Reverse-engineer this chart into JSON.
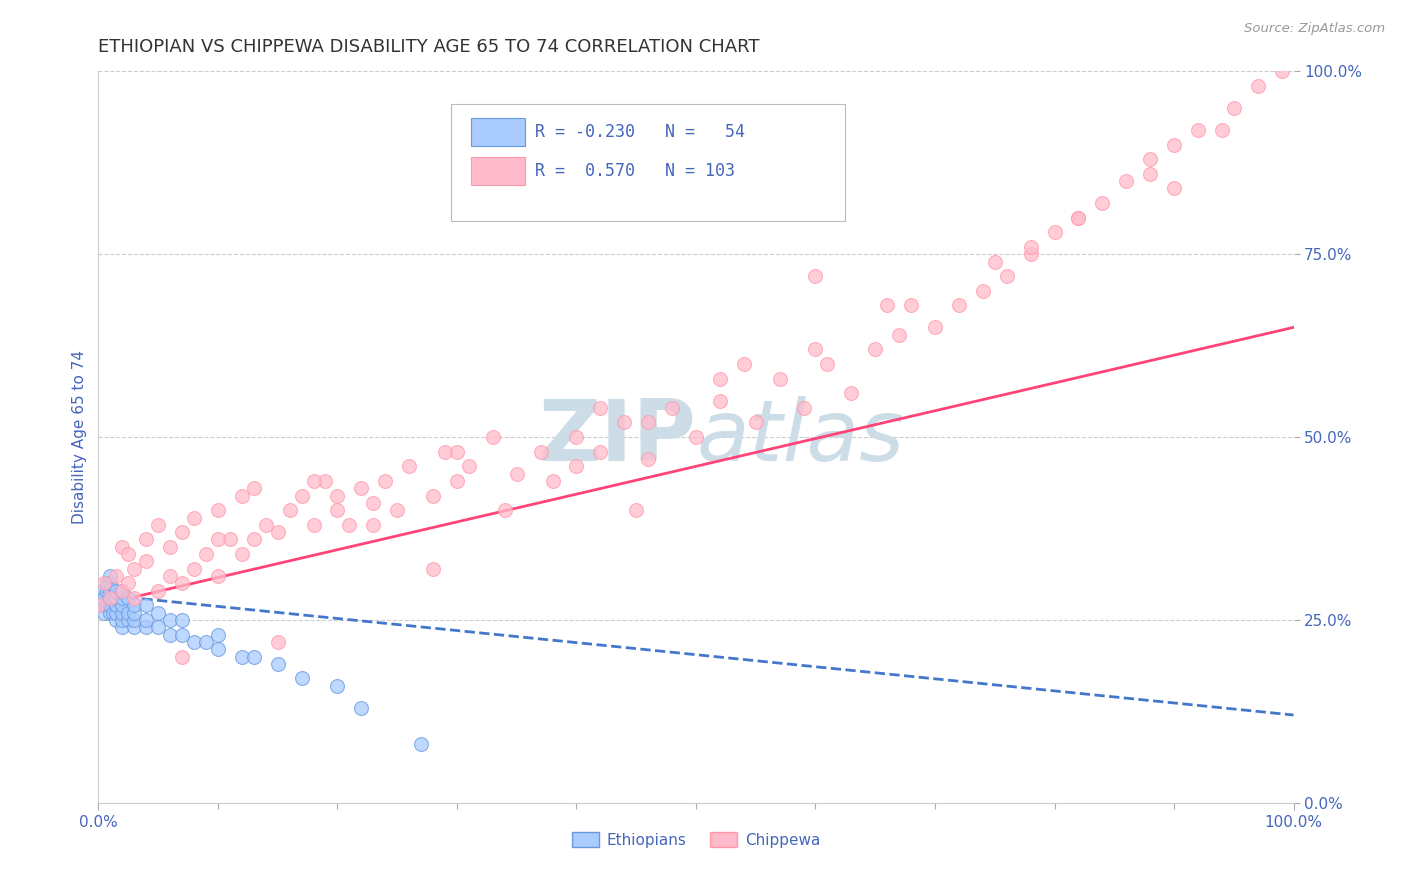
{
  "title": "ETHIOPIAN VS CHIPPEWA DISABILITY AGE 65 TO 74 CORRELATION CHART",
  "source_text": "Source: ZipAtlas.com",
  "ylabel": "Disability Age 65 to 74",
  "xlim": [
    0.0,
    1.0
  ],
  "ylim": [
    0.0,
    1.0
  ],
  "ytick_labels": [
    "0.0%",
    "25.0%",
    "50.0%",
    "75.0%",
    "100.0%"
  ],
  "ytick_values": [
    0.0,
    0.25,
    0.5,
    0.75,
    1.0
  ],
  "color_ethiopian_fill": "#aaccff",
  "color_ethiopian_edge": "#6699dd",
  "color_chippewa_fill": "#ffbbcc",
  "color_chippewa_edge": "#ff99aa",
  "color_line_ethiopian": "#4477cc",
  "color_line_chippewa": "#ff4477",
  "color_grid": "#cccccc",
  "watermark_color": "#ccdde8",
  "title_color": "#333333",
  "tick_label_color": "#4466bb",
  "source_color": "#999999",
  "legend_text_color": "#4466bb",
  "ethiopian_x": [
    0.0,
    0.0,
    0.0,
    0.005,
    0.005,
    0.007,
    0.007,
    0.007,
    0.01,
    0.01,
    0.01,
    0.01,
    0.01,
    0.01,
    0.012,
    0.012,
    0.015,
    0.015,
    0.015,
    0.015,
    0.015,
    0.02,
    0.02,
    0.02,
    0.02,
    0.02,
    0.02,
    0.025,
    0.025,
    0.025,
    0.03,
    0.03,
    0.03,
    0.03,
    0.04,
    0.04,
    0.04,
    0.05,
    0.05,
    0.06,
    0.06,
    0.07,
    0.07,
    0.08,
    0.09,
    0.1,
    0.1,
    0.12,
    0.13,
    0.15,
    0.17,
    0.2,
    0.22,
    0.27
  ],
  "ethiopian_y": [
    0.27,
    0.28,
    0.29,
    0.26,
    0.28,
    0.27,
    0.29,
    0.3,
    0.26,
    0.27,
    0.28,
    0.29,
    0.3,
    0.31,
    0.26,
    0.28,
    0.25,
    0.26,
    0.27,
    0.28,
    0.29,
    0.24,
    0.25,
    0.26,
    0.27,
    0.28,
    0.29,
    0.25,
    0.26,
    0.28,
    0.24,
    0.25,
    0.26,
    0.27,
    0.24,
    0.25,
    0.27,
    0.24,
    0.26,
    0.23,
    0.25,
    0.23,
    0.25,
    0.22,
    0.22,
    0.21,
    0.23,
    0.2,
    0.2,
    0.19,
    0.17,
    0.16,
    0.13,
    0.08
  ],
  "chippewa_x": [
    0.0,
    0.005,
    0.01,
    0.015,
    0.02,
    0.02,
    0.025,
    0.025,
    0.03,
    0.03,
    0.04,
    0.04,
    0.05,
    0.05,
    0.06,
    0.06,
    0.07,
    0.07,
    0.08,
    0.08,
    0.09,
    0.1,
    0.1,
    0.11,
    0.12,
    0.12,
    0.13,
    0.13,
    0.14,
    0.15,
    0.16,
    0.17,
    0.18,
    0.19,
    0.2,
    0.21,
    0.22,
    0.23,
    0.24,
    0.25,
    0.26,
    0.28,
    0.29,
    0.3,
    0.31,
    0.33,
    0.35,
    0.37,
    0.38,
    0.4,
    0.42,
    0.44,
    0.46,
    0.48,
    0.5,
    0.52,
    0.55,
    0.57,
    0.59,
    0.61,
    0.63,
    0.65,
    0.67,
    0.7,
    0.72,
    0.74,
    0.76,
    0.78,
    0.8,
    0.82,
    0.84,
    0.86,
    0.88,
    0.9,
    0.92,
    0.95,
    0.97,
    0.99,
    0.07,
    0.15,
    0.18,
    0.23,
    0.28,
    0.34,
    0.4,
    0.46,
    0.52,
    0.6,
    0.68,
    0.75,
    0.82,
    0.88,
    0.94,
    0.1,
    0.2,
    0.3,
    0.42,
    0.54,
    0.66,
    0.78,
    0.9,
    0.6,
    0.45
  ],
  "chippewa_y": [
    0.27,
    0.3,
    0.28,
    0.31,
    0.29,
    0.35,
    0.3,
    0.34,
    0.28,
    0.32,
    0.33,
    0.36,
    0.29,
    0.38,
    0.31,
    0.35,
    0.3,
    0.37,
    0.32,
    0.39,
    0.34,
    0.31,
    0.4,
    0.36,
    0.34,
    0.42,
    0.36,
    0.43,
    0.38,
    0.37,
    0.4,
    0.42,
    0.38,
    0.44,
    0.4,
    0.38,
    0.43,
    0.41,
    0.44,
    0.4,
    0.46,
    0.42,
    0.48,
    0.44,
    0.46,
    0.5,
    0.45,
    0.48,
    0.44,
    0.5,
    0.48,
    0.52,
    0.47,
    0.54,
    0.5,
    0.55,
    0.52,
    0.58,
    0.54,
    0.6,
    0.56,
    0.62,
    0.64,
    0.65,
    0.68,
    0.7,
    0.72,
    0.75,
    0.78,
    0.8,
    0.82,
    0.85,
    0.88,
    0.9,
    0.92,
    0.95,
    0.98,
    1.0,
    0.2,
    0.22,
    0.44,
    0.38,
    0.32,
    0.4,
    0.46,
    0.52,
    0.58,
    0.62,
    0.68,
    0.74,
    0.8,
    0.86,
    0.92,
    0.36,
    0.42,
    0.48,
    0.54,
    0.6,
    0.68,
    0.76,
    0.84,
    0.72,
    0.4
  ]
}
